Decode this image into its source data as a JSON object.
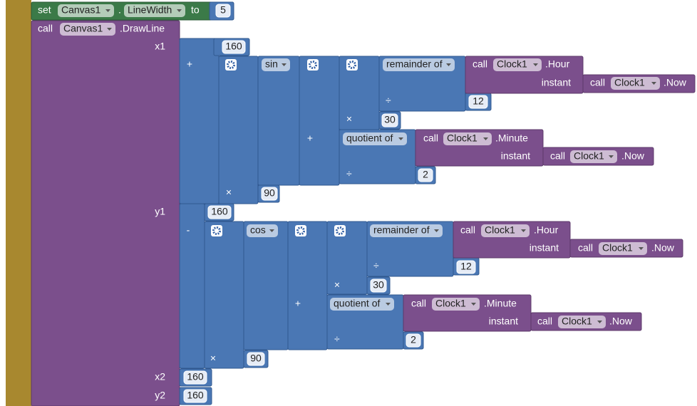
{
  "set_block": {
    "keyword": "set",
    "component": "Canvas1",
    "separator": ".",
    "property": "LineWidth",
    "to": "to",
    "value": 5
  },
  "draw_line": {
    "keyword": "call",
    "component": "Canvas1",
    "method": ".DrawLine",
    "x1": {
      "label": "x1",
      "offset": 160,
      "operator": "+",
      "multiply": "×",
      "radius": 90,
      "function": "sin",
      "add": "+",
      "multiply_hours": "×",
      "degrees_per_hour": 30,
      "hour": {
        "operation": "remainder of",
        "divide": "÷",
        "divisor": 12,
        "call": "call",
        "component": "Clock1",
        "method": ".Hour",
        "instant": "instant",
        "now_call": "call",
        "now_component": "Clock1",
        "now_method": ".Now"
      },
      "minute": {
        "operation": "quotient of",
        "divide": "÷",
        "divisor": 2,
        "call": "call",
        "component": "Clock1",
        "method": ".Minute",
        "instant": "instant",
        "now_call": "call",
        "now_component": "Clock1",
        "now_method": ".Now"
      }
    },
    "y1": {
      "label": "y1",
      "offset": 160,
      "operator": "-",
      "multiply": "×",
      "radius": 90,
      "function": "cos",
      "add": "+",
      "multiply_hours": "×",
      "degrees_per_hour": 30,
      "hour": {
        "operation": "remainder of",
        "divide": "÷",
        "divisor": 12,
        "call": "call",
        "component": "Clock1",
        "method": ".Hour",
        "instant": "instant",
        "now_call": "call",
        "now_component": "Clock1",
        "now_method": ".Now"
      },
      "minute": {
        "operation": "quotient of",
        "divide": "÷",
        "divisor": 2,
        "call": "call",
        "component": "Clock1",
        "method": ".Minute",
        "instant": "instant",
        "now_call": "call",
        "now_component": "Clock1",
        "now_method": ".Now"
      }
    },
    "x2": {
      "label": "x2",
      "value": 160
    },
    "y2": {
      "label": "y2",
      "value": 160
    }
  }
}
